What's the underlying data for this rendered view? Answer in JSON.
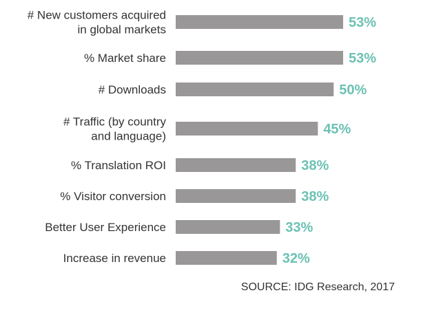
{
  "chart_data": {
    "type": "bar",
    "orientation": "horizontal",
    "categories": [
      [
        "# New customers acquired",
        "in global markets"
      ],
      [
        "% Market share"
      ],
      [
        "# Downloads"
      ],
      [
        "# Traffic (by country",
        "and language)"
      ],
      [
        "% Translation ROI"
      ],
      [
        "% Visitor conversion"
      ],
      [
        "Better User Experience"
      ],
      [
        "Increase in revenue"
      ]
    ],
    "values": [
      53,
      53,
      50,
      45,
      38,
      38,
      33,
      32
    ],
    "data_labels": [
      "53%",
      "53%",
      "50%",
      "45%",
      "38%",
      "38%",
      "33%",
      "32%"
    ],
    "unit": "%",
    "title": "",
    "xlabel": "",
    "ylabel": "",
    "grid": false,
    "legend": "none",
    "bar_color": "#999797",
    "label_color": "#6cc1b3"
  },
  "source": "SOURCE: IDG Research, 2017"
}
